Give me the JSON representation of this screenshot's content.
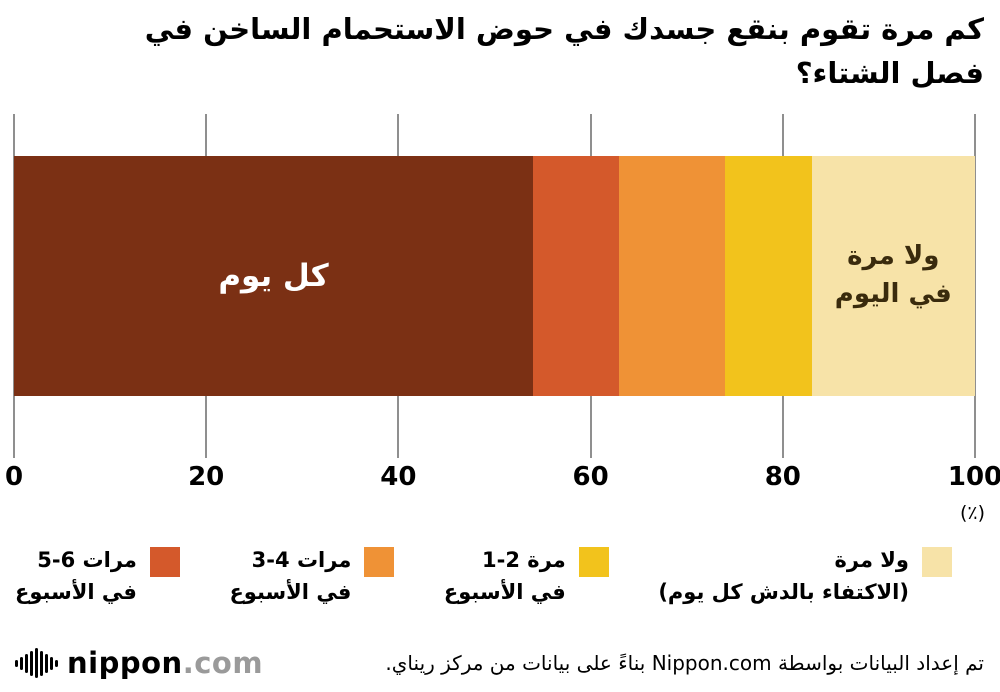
{
  "title": {
    "line1": "كم مرة تقوم بنقع جسدك في حوض الاستحمام الساخن في",
    "line2": "فصل الشتاء؟"
  },
  "chart_data": {
    "type": "bar",
    "stacked": true,
    "orientation": "horizontal",
    "title": "كم مرة تقوم بنقع جسدك في حوض الاستحمام الساخن في فصل الشتاء؟",
    "unit_label": "(٪)",
    "xlim": [
      0,
      100
    ],
    "ticks": [
      0,
      20,
      40,
      60,
      80,
      100
    ],
    "grid": true,
    "segments": [
      {
        "name": "كل يوم",
        "value": 54,
        "color": "#7B3014",
        "bar_label": "كل يوم",
        "bar_label_color": "#FFFFFF",
        "bar_label_size": "big"
      },
      {
        "name": "5-6 مرات في الأسبوع",
        "value": 9,
        "color": "#D4592B"
      },
      {
        "name": "3-4 مرات في الأسبوع",
        "value": 11,
        "color": "#EF9236"
      },
      {
        "name": "1-2 مرة في الأسبوع",
        "value": 9,
        "color": "#F2C31C"
      },
      {
        "name": "ولا مرة (الاكتفاء بالدش كل يوم)",
        "value": 17,
        "color": "#F7E3A8",
        "bar_label": "ولا مرة\nفي اليوم",
        "bar_label_color": "#3A2B0D",
        "bar_label_size": "small"
      }
    ]
  },
  "legend": {
    "items": [
      {
        "line1": "مرات 6-5",
        "line2": "في الأسبوع",
        "color": "#D4592B"
      },
      {
        "line1": "مرات 4-3",
        "line2": "في الأسبوع",
        "color": "#EF9236"
      },
      {
        "line1": "مرة 2-1",
        "line2": "في الأسبوع",
        "color": "#F2C31C"
      },
      {
        "line1": "ولا مرة",
        "line2": "(الاكتفاء بالدش كل يوم)",
        "color": "#F7E3A8"
      }
    ]
  },
  "footer": {
    "logo_main": "nippon",
    "logo_suffix": ".com",
    "attribution": "تم إعداد البيانات بواسطة Nippon.com بناءً على بيانات من مركز ريناي."
  }
}
